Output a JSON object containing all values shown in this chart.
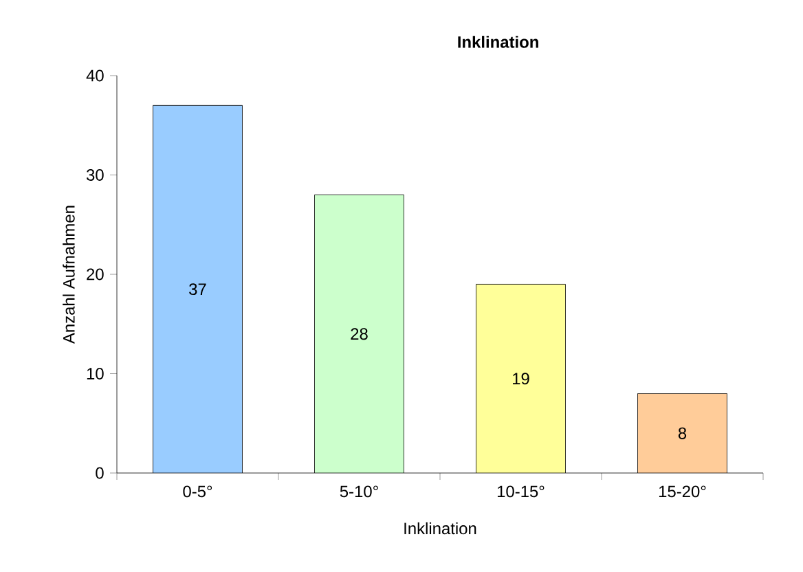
{
  "chart_data": {
    "type": "bar",
    "title": "Inklination",
    "xlabel": "Inklination",
    "ylabel": "Anzahl Aufnahmen",
    "categories": [
      "0-5°",
      "5-10°",
      "10-15°",
      "15-20°"
    ],
    "values": [
      37,
      28,
      19,
      8
    ],
    "colors": [
      "#99ccff",
      "#ccffcc",
      "#ffff99",
      "#ffcc99"
    ],
    "ylim": [
      0,
      40
    ],
    "yticks": [
      0,
      10,
      20,
      30,
      40
    ],
    "data_labels": true
  }
}
